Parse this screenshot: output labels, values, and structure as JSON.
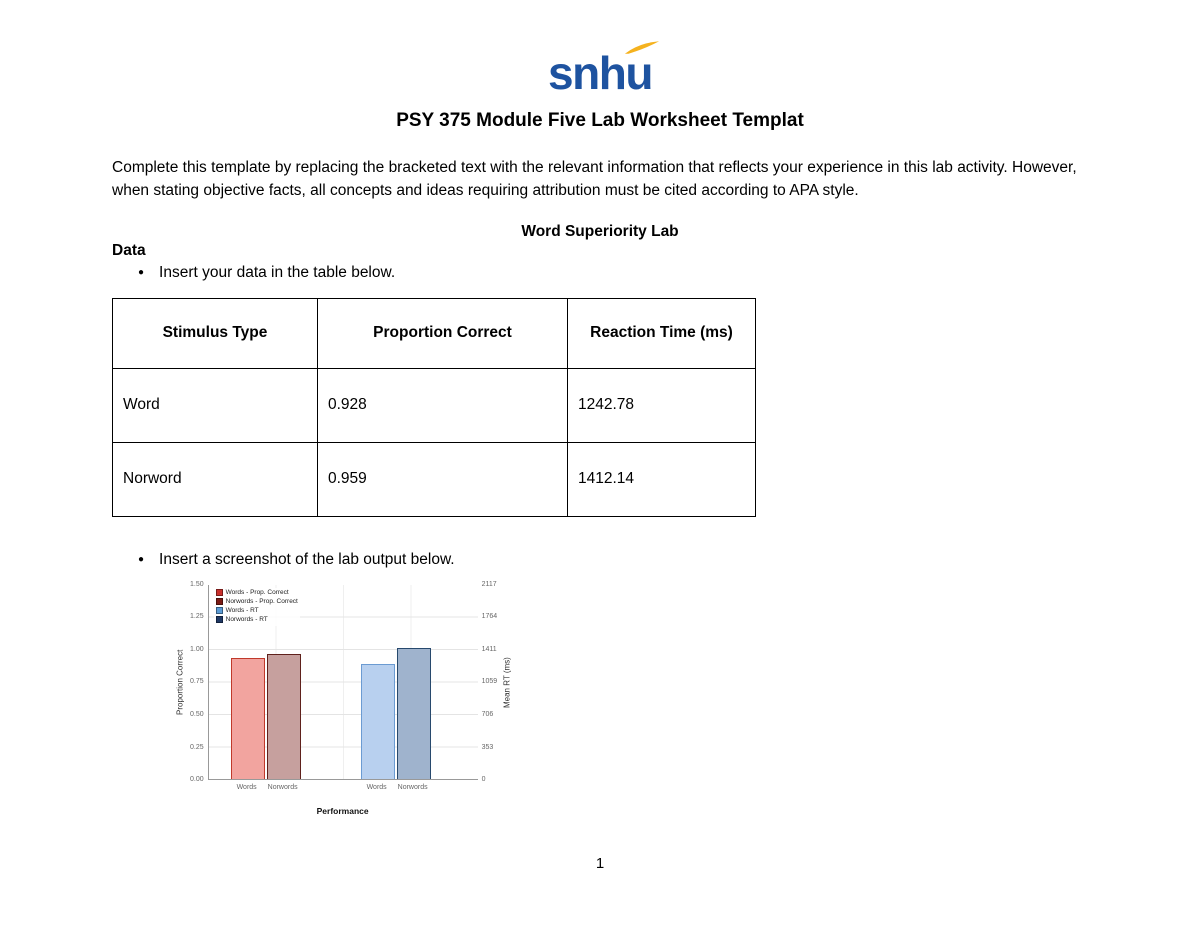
{
  "page": {
    "logo_text": "snhu",
    "title": "PSY 375 Module Five Lab Worksheet Templat",
    "intro": "Complete this template by replacing the bracketed text with the relevant information that reflects your experience in this lab activity. However, when stating objective facts, all concepts and ideas requiring attribution must be cited according to APA style.",
    "section_heading": "Word Superiority Lab",
    "data_heading": "Data",
    "bullet1": "Insert your data in the table below.",
    "bullet2": "Insert a screenshot of the lab output below.",
    "page_number": "1"
  },
  "table": {
    "headers": [
      "Stimulus Type",
      "Proportion Correct",
      "Reaction Time (ms)"
    ],
    "rows": [
      [
        "Word",
        "0.928",
        "1242.78"
      ],
      [
        "Norword",
        "0.959",
        "1412.14"
      ]
    ]
  },
  "chart_data": {
    "type": "bar",
    "title": "",
    "xlabel": "Performance",
    "ylabel_left": "Proportion Correct",
    "ylabel_right": "Mean RT (ms)",
    "ylim_left": [
      0,
      1.5
    ],
    "ylim_right": [
      0,
      2117
    ],
    "left_ticks": [
      "1.50",
      "1.25",
      "1.00",
      "0.75",
      "0.50",
      "0.25",
      "0.00"
    ],
    "right_ticks": [
      "2117",
      "1764",
      "1411",
      "1059",
      "706",
      "353",
      "0"
    ],
    "categories": [
      "Words",
      "Norwords",
      "Words",
      "Norwords"
    ],
    "grid": true,
    "legend_position": "top-left",
    "legend": [
      {
        "label": "Words - Prop. Correct",
        "color": "#c9302c"
      },
      {
        "label": "Norwords - Prop. Correct",
        "color": "#7b1b15"
      },
      {
        "label": "Words - RT",
        "color": "#5b9bd5"
      },
      {
        "label": "Norwords - RT",
        "color": "#1f3864"
      }
    ],
    "series": [
      {
        "name": "Words - Prop. Correct",
        "value": 0.928,
        "axis": "left",
        "fill": "#f2a49f",
        "border": "#c0392b"
      },
      {
        "name": "Norwords - Prop. Correct",
        "value": 0.959,
        "axis": "left",
        "fill": "#c6a09e",
        "border": "#5f211c"
      },
      {
        "name": "Words - RT",
        "value": 1242.78,
        "axis": "right",
        "fill": "#b8d0ef",
        "border": "#6b9bd2"
      },
      {
        "name": "Norwords - RT",
        "value": 1412.14,
        "axis": "right",
        "fill": "#9fb3cd",
        "border": "#27496d"
      }
    ]
  }
}
